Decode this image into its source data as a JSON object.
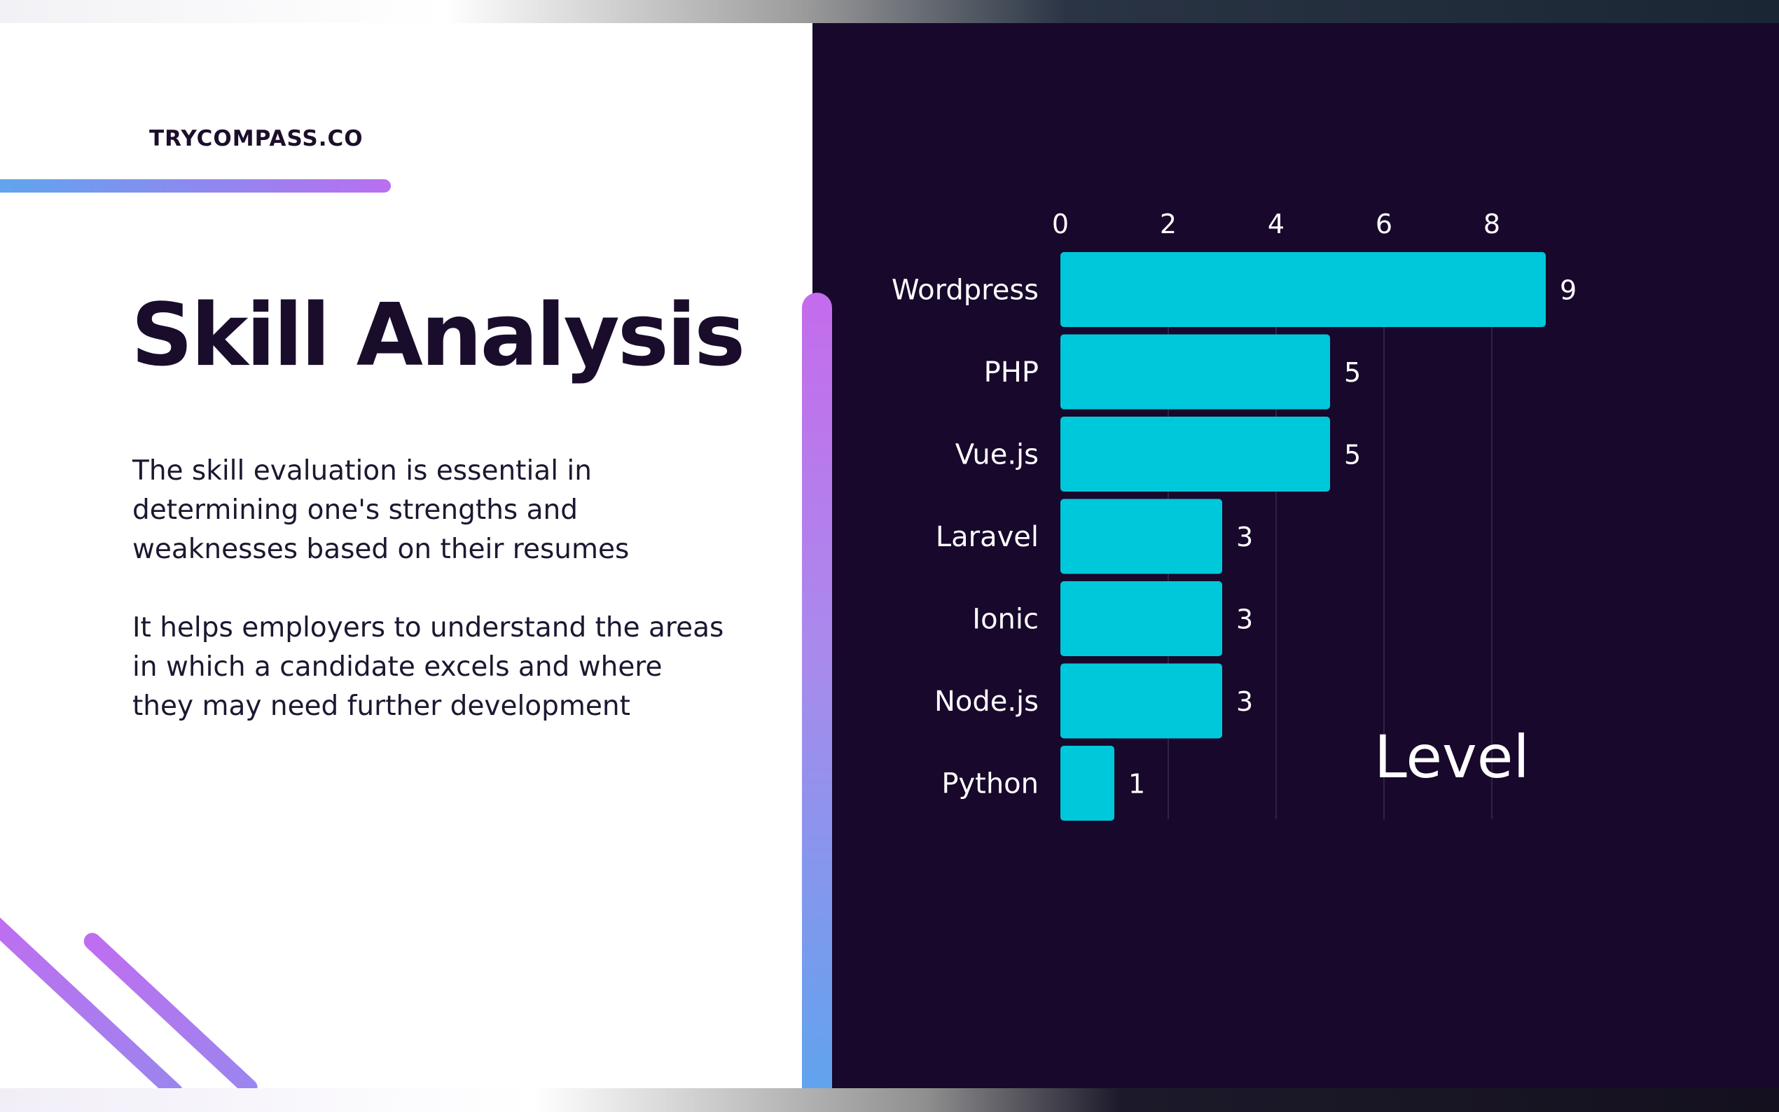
{
  "brand": "TRYCOMPASS.CO",
  "title": "Skill Analysis",
  "paragraphs": [
    "The skill evaluation is essential in determining one's strengths and weaknesses based on their resumes",
    "It helps employers to understand the areas in which a candidate excels and where they may need further development"
  ],
  "colors": {
    "background_dark": "#18082b",
    "bar": "#00c8db",
    "accent_purple": "#c46cec",
    "accent_blue": "#5ea4ee",
    "title": "#1a0d2c"
  },
  "chart_data": {
    "type": "bar",
    "orientation": "horizontal",
    "categories": [
      "Wordpress",
      "PHP",
      "Vue.js",
      "Laravel",
      "Ionic",
      "Node.js",
      "Python"
    ],
    "values": [
      9,
      5,
      5,
      3,
      3,
      3,
      1
    ],
    "xticks": [
      0,
      2,
      4,
      6,
      8
    ],
    "xlim": [
      0,
      10
    ],
    "xlabel": "Level",
    "xaxis_position": "top",
    "grid": "vertical",
    "data_labels": true
  }
}
